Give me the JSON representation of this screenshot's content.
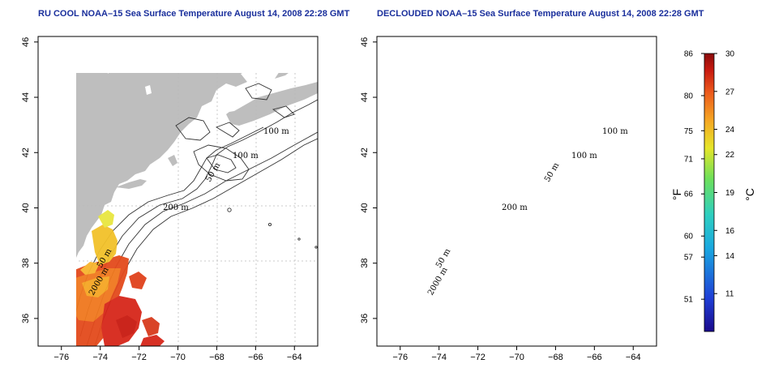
{
  "panels": [
    {
      "id": "left",
      "title": "RU COOL NOAA–15 Sea Surface Temperature August 14, 2008 22:28 GMT",
      "contour_labels": [
        "100 m",
        "100 m",
        "50 m",
        "200 m",
        "50 m",
        "2000 m"
      ]
    },
    {
      "id": "right",
      "title": "DECLOUDED NOAA–15 Sea Surface Temperature August 14, 2008 22:28 GMT",
      "contour_labels": [
        "100 m",
        "100 m",
        "50 m",
        "200 m",
        "50 m",
        "2000 m"
      ]
    }
  ],
  "axes": {
    "x_ticks": [
      "−76",
      "−74",
      "−72",
      "−70",
      "−68",
      "−66",
      "−64"
    ],
    "y_ticks": [
      "36",
      "38",
      "40",
      "42",
      "44",
      "46"
    ],
    "lon_range": [
      -77.2,
      -62.8
    ],
    "lat_range": [
      35.0,
      46.2
    ]
  },
  "colorbar": {
    "fahrenheit_ticks": [
      "86",
      "80",
      "75",
      "71",
      "66",
      "60",
      "57",
      "51"
    ],
    "celsius_ticks": [
      "30",
      "27",
      "24",
      "22",
      "19",
      "16",
      "14",
      "11"
    ],
    "fahrenheit_unit": "°F",
    "celsius_unit": "°C",
    "celsius_range": [
      8,
      30
    ]
  },
  "colors": {
    "land": "#bebebe",
    "ocean": "#ffffff",
    "contour": "#333333",
    "grid": "#bbbbbb",
    "title": "#1a2f9c"
  }
}
